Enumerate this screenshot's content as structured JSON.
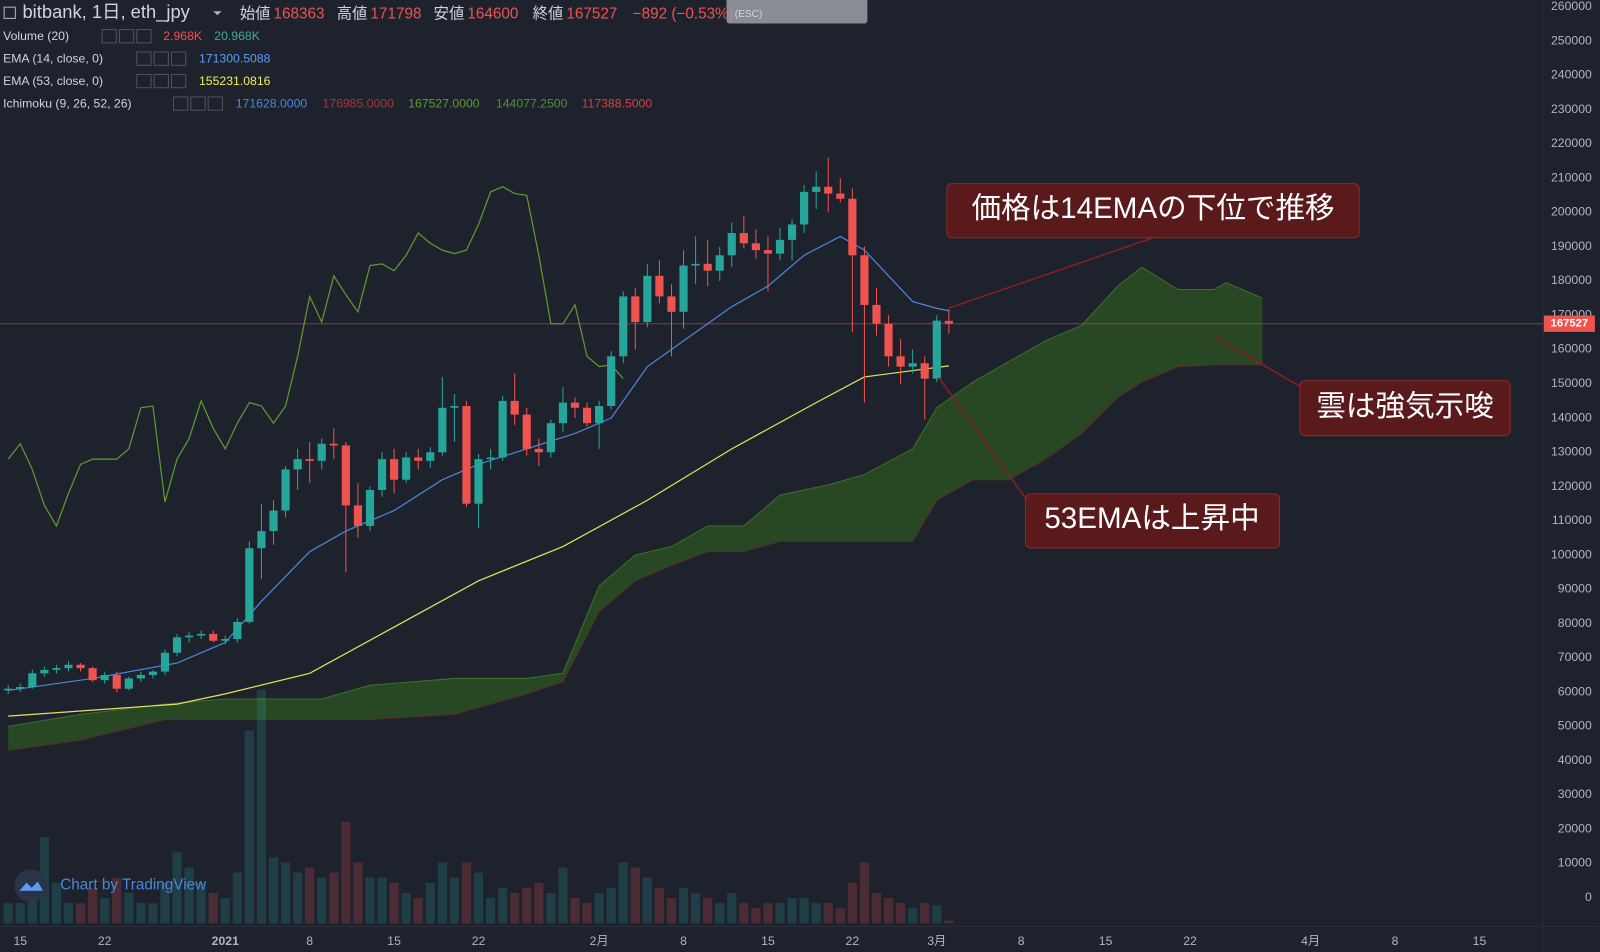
{
  "header": {
    "symbol": "bitbank, 1日, eth_jpy",
    "open_label": "始値",
    "high_label": "高値",
    "low_label": "安値",
    "close_label": "終値",
    "change": "−892 (−0.53%)",
    "tooltip": "(ESC)",
    "watermark": "Chart by TradingView"
  },
  "chart_data": {
    "type": "candlestick",
    "up_color": "#26a69a",
    "down_color": "#ef5350",
    "x": [
      "2020-12-14",
      "2020-12-15",
      "2020-12-16",
      "2020-12-17",
      "2020-12-18",
      "2020-12-19",
      "2020-12-20",
      "2020-12-21",
      "2020-12-22",
      "2020-12-23",
      "2020-12-24",
      "2020-12-25",
      "2020-12-26",
      "2020-12-27",
      "2020-12-28",
      "2020-12-29",
      "2020-12-30",
      "2020-12-31",
      "2021-01-01",
      "2021-01-02",
      "2021-01-03",
      "2021-01-04",
      "2021-01-05",
      "2021-01-06",
      "2021-01-07",
      "2021-01-08",
      "2021-01-09",
      "2021-01-10",
      "2021-01-11",
      "2021-01-12",
      "2021-01-13",
      "2021-01-14",
      "2021-01-15",
      "2021-01-16",
      "2021-01-17",
      "2021-01-18",
      "2021-01-19",
      "2021-01-20",
      "2021-01-21",
      "2021-01-22",
      "2021-01-23",
      "2021-01-24",
      "2021-01-25",
      "2021-01-26",
      "2021-01-27",
      "2021-01-28",
      "2021-01-29",
      "2021-01-30",
      "2021-01-31",
      "2021-02-01",
      "2021-02-02",
      "2021-02-03",
      "2021-02-04",
      "2021-02-05",
      "2021-02-06",
      "2021-02-07",
      "2021-02-08",
      "2021-02-09",
      "2021-02-10",
      "2021-02-11",
      "2021-02-12",
      "2021-02-13",
      "2021-02-14",
      "2021-02-15",
      "2021-02-16",
      "2021-02-17",
      "2021-02-18",
      "2021-02-19",
      "2021-02-20",
      "2021-02-21",
      "2021-02-22",
      "2021-02-23",
      "2021-02-24",
      "2021-02-25",
      "2021-02-26",
      "2021-02-27",
      "2021-02-28",
      "2021-03-01",
      "2021-03-02"
    ],
    "open": [
      60500,
      61000,
      61500,
      65500,
      66500,
      67000,
      68000,
      67000,
      63500,
      65000,
      61000,
      64000,
      65000,
      66000,
      71500,
      76000,
      76500,
      77000,
      75000,
      75500,
      80500,
      102000,
      107000,
      113000,
      125000,
      128000,
      127500,
      132500,
      132000,
      114500,
      108500,
      119000,
      128000,
      122000,
      128500,
      127500,
      130000,
      143000,
      143500,
      115000,
      128000,
      128500,
      145000,
      141000,
      131000,
      130000,
      138500,
      144500,
      143000,
      138500,
      143500,
      158000,
      175500,
      168000,
      181500,
      175500,
      171000,
      184500,
      185000,
      183000,
      187500,
      194000,
      191000,
      189000,
      188000,
      192000,
      196500,
      206000,
      207500,
      205500,
      204000,
      187500,
      173000,
      167500,
      158000,
      155000,
      156000,
      151500,
      168363
    ],
    "high": [
      62000,
      62500,
      66500,
      67500,
      68000,
      69000,
      68500,
      67500,
      66000,
      66000,
      64500,
      66000,
      66500,
      72500,
      77000,
      77500,
      78000,
      78000,
      76500,
      81500,
      104000,
      115000,
      116000,
      126000,
      131000,
      133000,
      134000,
      137000,
      133000,
      121000,
      120000,
      130000,
      131000,
      130000,
      131000,
      131500,
      152000,
      147000,
      145000,
      129500,
      131000,
      146500,
      153000,
      143000,
      134000,
      139500,
      149000,
      146000,
      144500,
      145000,
      159500,
      177000,
      178000,
      185000,
      186000,
      179000,
      189000,
      193000,
      192000,
      190000,
      197000,
      199000,
      195000,
      193000,
      195500,
      198000,
      208000,
      212000,
      216000,
      210000,
      207000,
      190000,
      178000,
      170000,
      163000,
      160000,
      158000,
      170000,
      171798
    ],
    "low": [
      59500,
      60000,
      61000,
      64500,
      65500,
      66000,
      66000,
      63000,
      62500,
      60000,
      60500,
      63000,
      64000,
      65000,
      70500,
      74500,
      75500,
      74500,
      74000,
      74500,
      80000,
      93000,
      103000,
      111000,
      119000,
      121000,
      125000,
      128000,
      95000,
      105000,
      107000,
      117000,
      118000,
      121000,
      125000,
      125500,
      129000,
      133000,
      114000,
      108000,
      125000,
      127500,
      138000,
      129000,
      126000,
      128500,
      136000,
      140000,
      137500,
      131000,
      142500,
      156000,
      160000,
      166500,
      173500,
      158000,
      166000,
      179000,
      178500,
      180000,
      184000,
      189500,
      186500,
      177000,
      186000,
      186000,
      194000,
      201000,
      200000,
      203000,
      165000,
      144500,
      164000,
      155000,
      150000,
      153000,
      139500,
      150500,
      164600
    ],
    "close": [
      61000,
      61500,
      65500,
      66500,
      67000,
      68000,
      67000,
      63500,
      65000,
      61000,
      64000,
      65000,
      66000,
      71500,
      76000,
      76500,
      77000,
      75000,
      75500,
      80500,
      102000,
      107000,
      113000,
      125000,
      128000,
      127500,
      132500,
      132000,
      114500,
      108500,
      119000,
      128000,
      122000,
      128500,
      127500,
      130000,
      143000,
      143500,
      115000,
      128000,
      128500,
      145000,
      141000,
      131000,
      130000,
      138500,
      144500,
      143000,
      138500,
      143500,
      158000,
      175500,
      168000,
      181500,
      175500,
      171000,
      184500,
      185000,
      183000,
      187500,
      194000,
      191000,
      189000,
      188000,
      192000,
      196500,
      206000,
      207500,
      205500,
      204000,
      187500,
      173000,
      167500,
      158000,
      155000,
      156000,
      151500,
      168419,
      167527
    ],
    "volume": {
      "name": "Volume (20)",
      "last_label": "2.968K",
      "ma_label": "20.968K",
      "values": [
        20,
        20,
        40,
        85,
        40,
        20,
        20,
        35,
        25,
        45,
        30,
        20,
        20,
        40,
        70,
        55,
        40,
        30,
        25,
        50,
        190,
        230,
        65,
        60,
        50,
        55,
        45,
        50,
        100,
        60,
        45,
        45,
        40,
        30,
        25,
        40,
        60,
        45,
        60,
        50,
        25,
        35,
        30,
        35,
        40,
        30,
        55,
        25,
        20,
        30,
        35,
        60,
        55,
        45,
        35,
        25,
        35,
        30,
        25,
        20,
        30,
        20,
        15,
        20,
        20,
        25,
        25,
        20,
        20,
        15,
        40,
        60,
        30,
        25,
        20,
        15,
        20,
        18,
        2.968
      ]
    },
    "lines": [
      {
        "name": "EMA (14, close, 0)",
        "color": "#4a86d8",
        "x": [
          "2020-12-14",
          "2020-12-21",
          "2020-12-28",
          "2021-01-01",
          "2021-01-04",
          "2021-01-08",
          "2021-01-11",
          "2021-01-15",
          "2021-01-19",
          "2021-01-22",
          "2021-01-26",
          "2021-01-30",
          "2021-02-02",
          "2021-02-05",
          "2021-02-08",
          "2021-02-12",
          "2021-02-15",
          "2021-02-18",
          "2021-02-21",
          "2021-02-23",
          "2021-02-25",
          "2021-02-27",
          "2021-03-01",
          "2021-03-02"
        ],
        "values": [
          60500,
          64000,
          68500,
          74500,
          86500,
          101000,
          107000,
          113000,
          122000,
          126500,
          131000,
          135500,
          140000,
          155000,
          162500,
          172500,
          178500,
          187500,
          193000,
          189000,
          181500,
          174000,
          172000,
          171300.5088
        ]
      },
      {
        "name": "EMA (53, close, 0)",
        "color": "#e3e35a",
        "x": [
          "2020-12-14",
          "2020-12-28",
          "2021-01-01",
          "2021-01-08",
          "2021-01-15",
          "2021-01-22",
          "2021-01-29",
          "2021-02-05",
          "2021-02-12",
          "2021-02-19",
          "2021-02-23",
          "2021-03-02"
        ],
        "values": [
          53000,
          56500,
          59500,
          65500,
          79000,
          92500,
          102500,
          116000,
          131000,
          144500,
          152000,
          155231.0816
        ]
      },
      {
        "name": "Ichimoku (9, 26, 52, 26)",
        "color": "#5f9a33",
        "values": [
          128000,
          132500,
          125000,
          114500,
          108500,
          118000,
          126500,
          128000,
          128000,
          128000,
          131000,
          143000,
          143500,
          115500,
          128000,
          134000,
          145000,
          137000,
          131000,
          138500,
          144500,
          143500,
          138500,
          143500,
          158000,
          175500,
          168000,
          181500,
          176000,
          171000,
          184500,
          185000,
          183000,
          187500,
          194000,
          191000,
          189000,
          188000,
          189000,
          196500,
          206000,
          207500,
          205500,
          205000,
          187500,
          167500,
          167500,
          173000,
          158000,
          155000,
          155500,
          151500,
          null,
          null,
          null,
          null,
          null,
          null,
          null,
          null,
          null,
          null,
          null,
          null,
          null,
          null,
          null,
          null,
          null,
          null,
          null,
          null,
          null,
          null,
          null,
          null,
          null,
          null,
          null
        ]
      }
    ],
    "ichimoku_values": [
      {
        "label": "171628.0000",
        "color": "#4a86d8"
      },
      {
        "label": "176985.0000",
        "color": "#a33a3a"
      },
      {
        "label": "167527.0000",
        "color": "#5f9a33"
      },
      {
        "label": "144077.2500",
        "color": "#4f8f3a"
      },
      {
        "label": "117388.5000",
        "color": "#d84040"
      }
    ],
    "cloud": {
      "fill": "#2c5520",
      "x": [
        "2020-12-14",
        "2020-12-20",
        "2020-12-27",
        "2021-01-01",
        "2021-01-09",
        "2021-01-13",
        "2021-01-20",
        "2021-01-26",
        "2021-01-29",
        "2021-02-01",
        "2021-02-04",
        "2021-02-07",
        "2021-02-10",
        "2021-02-13",
        "2021-02-16",
        "2021-02-20",
        "2021-02-23",
        "2021-02-27",
        "2021-03-01",
        "2021-03-04",
        "2021-03-07",
        "2021-03-10",
        "2021-03-13",
        "2021-03-16",
        "2021-03-18",
        "2021-03-21",
        "2021-03-24",
        "2021-03-25",
        "2021-03-28"
      ],
      "span_a": {
        "color": "#3d6e2c",
        "values": [
          50000,
          53500,
          56500,
          58000,
          58000,
          62000,
          64000,
          64000,
          65500,
          91000,
          100000,
          102500,
          108500,
          108500,
          117500,
          120500,
          123500,
          131000,
          143000,
          150500,
          156500,
          162500,
          167000,
          178500,
          184000,
          177500,
          177500,
          179500,
          175000
        ]
      },
      "span_b": {
        "color": "#5a2a2a",
        "values": [
          43000,
          46000,
          52000,
          52000,
          52000,
          52000,
          53500,
          59500,
          63000,
          83500,
          92500,
          97000,
          101000,
          101000,
          104000,
          104000,
          104000,
          104000,
          116000,
          122000,
          122000,
          128000,
          135500,
          146000,
          150500,
          155000,
          155500,
          155500,
          155500
        ]
      }
    },
    "xlim": [
      "2020-12-14",
      "2021-04-20"
    ],
    "xticks": [
      {
        "value": "2020-12-15",
        "label": "15"
      },
      {
        "value": "2020-12-22",
        "label": "22"
      },
      {
        "value": "2021-01-01",
        "label": "2021"
      },
      {
        "value": "2021-01-08",
        "label": "8"
      },
      {
        "value": "2021-01-15",
        "label": "15"
      },
      {
        "value": "2021-01-22",
        "label": "22"
      },
      {
        "value": "2021-02-01",
        "label": "2月"
      },
      {
        "value": "2021-02-08",
        "label": "8"
      },
      {
        "value": "2021-02-15",
        "label": "15"
      },
      {
        "value": "2021-02-22",
        "label": "22"
      },
      {
        "value": "2021-03-01",
        "label": "3月"
      },
      {
        "value": "2021-03-08",
        "label": "8"
      },
      {
        "value": "2021-03-15",
        "label": "15"
      },
      {
        "value": "2021-03-22",
        "label": "22"
      },
      {
        "value": "2021-04-01",
        "label": "4月"
      },
      {
        "value": "2021-04-08",
        "label": "8"
      },
      {
        "value": "2021-04-15",
        "label": "15"
      }
    ],
    "ylim": [
      -7500,
      262000
    ],
    "yticks": [
      0,
      10000,
      20000,
      30000,
      40000,
      50000,
      60000,
      70000,
      80000,
      90000,
      100000,
      110000,
      120000,
      130000,
      140000,
      150000,
      160000,
      170000,
      180000,
      190000,
      200000,
      210000,
      220000,
      230000,
      240000,
      250000,
      260000
    ],
    "grid": false,
    "annotations": [
      "価格は14EMAの下位で推移",
      "雲は強気示唆",
      "53EMAは上昇中"
    ]
  }
}
